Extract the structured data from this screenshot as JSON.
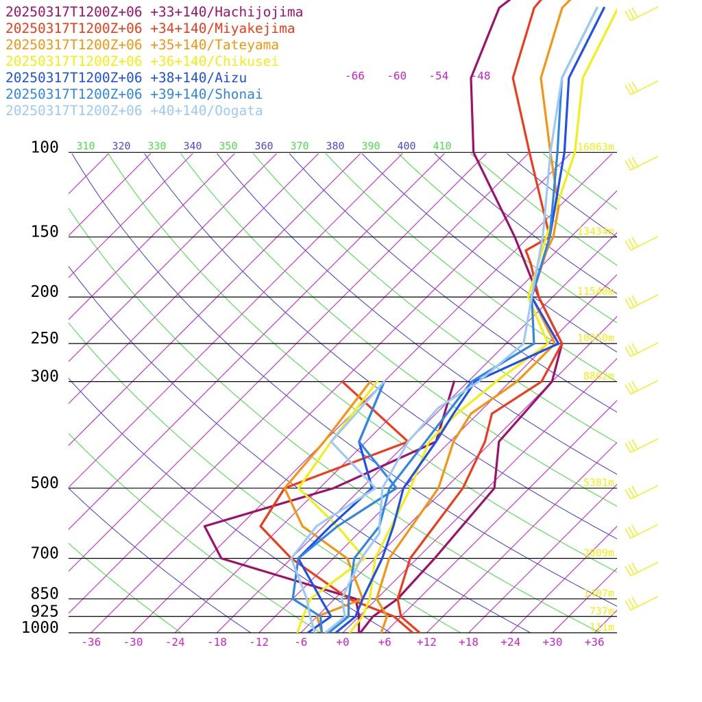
{
  "chart_data": {
    "type": "line",
    "title": "",
    "xlabel": "",
    "ylabel": "",
    "xlim": [
      -40,
      40
    ],
    "x_ticks": [
      -36,
      -30,
      -24,
      -18,
      -12,
      -6,
      0,
      6,
      12,
      18,
      24,
      30,
      36
    ],
    "x_tick_labels": [
      "-36",
      "-30",
      "-24",
      "-18",
      "-12",
      "-6",
      "+0",
      "+6",
      "+12",
      "+18",
      "+24",
      "+30",
      "+36"
    ],
    "top_isotherm_labels": [
      {
        "t": -66,
        "label": "-66"
      },
      {
        "t": -60,
        "label": "-60"
      },
      {
        "t": -54,
        "label": "-54"
      },
      {
        "t": -48,
        "label": "-48"
      }
    ],
    "pressure_levels": [
      {
        "p": 100,
        "label": "100",
        "height": "16063m"
      },
      {
        "p": 150,
        "label": "150",
        "height": "13434m"
      },
      {
        "p": 200,
        "label": "200",
        "height": "11540m"
      },
      {
        "p": 250,
        "label": "250",
        "height": "10050m"
      },
      {
        "p": 300,
        "label": "300",
        "height": "8862m"
      },
      {
        "p": 500,
        "label": "500",
        "height": "5381m"
      },
      {
        "p": 700,
        "label": "700",
        "height": "2809m"
      },
      {
        "p": 850,
        "label": "850",
        "height": "1407m"
      },
      {
        "p": 925,
        "label": "925",
        "height": "737m"
      },
      {
        "p": 1000,
        "label": "1000",
        "height": "111m"
      }
    ],
    "theta_labels": [
      "310",
      "320",
      "330",
      "340",
      "350",
      "360",
      "370",
      "380",
      "390",
      "400",
      "410"
    ],
    "series": [
      {
        "name": "20250317T1200Z+06 +33+140/Hachijojima",
        "color": "#a0106a",
        "temperature": [
          [
            1000,
            2.5
          ],
          [
            925,
            2.0
          ],
          [
            850,
            3.0
          ],
          [
            700,
            2.5
          ],
          [
            500,
            1.0
          ],
          [
            400,
            -5.0
          ],
          [
            300,
            -6.0
          ],
          [
            250,
            -10.0
          ],
          [
            200,
            -20.0
          ],
          [
            150,
            -32.0
          ],
          [
            100,
            -50.0
          ],
          [
            70,
            -61.0
          ],
          [
            50,
            -67.0
          ],
          [
            40,
            -65.0
          ]
        ],
        "dewpoint": [
          [
            1000,
            2.3
          ],
          [
            925,
            0.0
          ],
          [
            850,
            -3.0
          ],
          [
            700,
            -28.0
          ],
          [
            600,
            -35.0
          ],
          [
            500,
            -22.0
          ],
          [
            400,
            -14.0
          ],
          [
            300,
            -20.0
          ]
        ]
      },
      {
        "name": "20250317T1200Z+06 +34+140/Miyakejima",
        "color": "#f03a1a",
        "temperature": [
          [
            1000,
            11.0
          ],
          [
            925,
            6.0
          ],
          [
            850,
            3.0
          ],
          [
            700,
            -1.0
          ],
          [
            500,
            -3.5
          ],
          [
            400,
            -7.0
          ],
          [
            350,
            -10.0
          ],
          [
            300,
            -7.5
          ],
          [
            250,
            -10.0
          ],
          [
            200,
            -20.0
          ],
          [
            170,
            -26.0
          ],
          [
            160,
            -28.5
          ],
          [
            150,
            -27.0
          ],
          [
            100,
            -42.0
          ],
          [
            70,
            -55.0
          ],
          [
            50,
            -62.0
          ],
          [
            40,
            -63.0
          ]
        ],
        "dewpoint": [
          [
            1000,
            10.0
          ],
          [
            925,
            5.0
          ],
          [
            850,
            -4.0
          ],
          [
            700,
            -18.0
          ],
          [
            600,
            -27.0
          ],
          [
            500,
            -29.0
          ],
          [
            400,
            -18.0
          ],
          [
            300,
            -36.0
          ]
        ]
      },
      {
        "name": "20250317T1200Z+06 +35+140/Tateyama",
        "color": "#f7940f",
        "temperature": [
          [
            1000,
            5.5
          ],
          [
            925,
            4.0
          ],
          [
            850,
            0.0
          ],
          [
            700,
            -4.0
          ],
          [
            500,
            -7.0
          ],
          [
            400,
            -11.5
          ],
          [
            350,
            -13.0
          ],
          [
            300,
            -11.0
          ],
          [
            250,
            -11.0
          ],
          [
            200,
            -21.0
          ],
          [
            160,
            -25.5
          ],
          [
            150,
            -26.5
          ],
          [
            130,
            -30.0
          ],
          [
            100,
            -39.0
          ],
          [
            70,
            -51.0
          ],
          [
            50,
            -58.0
          ],
          [
            40,
            -58.0
          ]
        ],
        "dewpoint": [
          [
            1000,
            -3.0
          ],
          [
            925,
            -6.0
          ],
          [
            850,
            -2.0
          ],
          [
            700,
            -10.0
          ],
          [
            600,
            -21.0
          ],
          [
            500,
            -29.0
          ],
          [
            400,
            -30.0
          ],
          [
            300,
            -32.0
          ]
        ]
      },
      {
        "name": "20250317T1200Z+06 +36+140/Chikusei",
        "color": "#f2ef13",
        "temperature": [
          [
            1000,
            1.0
          ],
          [
            925,
            0.5
          ],
          [
            850,
            -1.0
          ],
          [
            700,
            -6.0
          ],
          [
            500,
            -11.0
          ],
          [
            400,
            -15.0
          ],
          [
            350,
            -15.0
          ],
          [
            300,
            -14.0
          ],
          [
            250,
            -12.0
          ],
          [
            200,
            -21.5
          ],
          [
            150,
            -27.5
          ],
          [
            100,
            -35.5
          ],
          [
            70,
            -45.0
          ],
          [
            50,
            -50.0
          ],
          [
            40,
            -50.0
          ]
        ],
        "dewpoint": [
          [
            1000,
            -6.5
          ],
          [
            925,
            -8.0
          ],
          [
            850,
            -9.5
          ],
          [
            700,
            -7.5
          ],
          [
            600,
            -16.0
          ],
          [
            500,
            -27.0
          ],
          [
            400,
            -29.0
          ],
          [
            300,
            -31.0
          ]
        ]
      },
      {
        "name": "20250317T1200Z+06 +38+140/Aizu",
        "color": "#1c4ef0",
        "temperature": [
          [
            1000,
            -1.0
          ],
          [
            925,
            -0.5
          ],
          [
            850,
            -2.0
          ],
          [
            700,
            -5.0
          ],
          [
            600,
            -8.0
          ],
          [
            500,
            -12.0
          ],
          [
            400,
            -14.0
          ],
          [
            350,
            -15.5
          ],
          [
            300,
            -17.0
          ],
          [
            250,
            -10.5
          ],
          [
            200,
            -21.0
          ],
          [
            150,
            -27.0
          ],
          [
            100,
            -37.0
          ],
          [
            70,
            -47.0
          ],
          [
            50,
            -52.0
          ]
        ],
        "dewpoint": [
          [
            1000,
            -5.0
          ],
          [
            925,
            -4.0
          ],
          [
            850,
            -8.0
          ],
          [
            700,
            -17.0
          ],
          [
            600,
            -17.0
          ],
          [
            500,
            -16.5
          ],
          [
            400,
            -25.0
          ],
          [
            300,
            -30.0
          ]
        ]
      },
      {
        "name": "20250317T1200Z+06 +39+140/Shonai",
        "color": "#2f86e6",
        "temperature": [
          [
            1000,
            -2.0
          ],
          [
            925,
            -1.5
          ],
          [
            850,
            -4.0
          ],
          [
            700,
            -9.0
          ],
          [
            600,
            -10.0
          ],
          [
            500,
            -14.0
          ],
          [
            400,
            -15.5
          ],
          [
            300,
            -17.5
          ],
          [
            250,
            -14.0
          ],
          [
            200,
            -21.0
          ],
          [
            150,
            -27.0
          ],
          [
            100,
            -38.0
          ],
          [
            70,
            -48.0
          ],
          [
            50,
            -53.0
          ]
        ],
        "dewpoint": [
          [
            1000,
            -3.0
          ],
          [
            925,
            -5.5
          ],
          [
            850,
            -12.0
          ],
          [
            700,
            -17.0
          ],
          [
            600,
            -16.0
          ],
          [
            500,
            -13.0
          ],
          [
            400,
            -25.0
          ],
          [
            300,
            -30.0
          ]
        ]
      },
      {
        "name": "20250317T1200Z+06 +40+140/Oogata",
        "color": "#9ec9f5",
        "temperature": [
          [
            1000,
            -2.5
          ],
          [
            925,
            -2.0
          ],
          [
            850,
            -5.0
          ],
          [
            700,
            -8.0
          ],
          [
            620,
            -9.0
          ],
          [
            600,
            -10.0
          ],
          [
            500,
            -15.0
          ],
          [
            400,
            -18.0
          ],
          [
            340,
            -18.5
          ],
          [
            300,
            -16.5
          ],
          [
            250,
            -15.5
          ],
          [
            200,
            -21.0
          ],
          [
            150,
            -28.0
          ],
          [
            100,
            -39.0
          ],
          [
            70,
            -48.0
          ],
          [
            50,
            -53.0
          ]
        ],
        "dewpoint": [
          [
            1000,
            -4.0
          ],
          [
            925,
            -7.0
          ],
          [
            850,
            -10.0
          ],
          [
            700,
            -18.0
          ],
          [
            600,
            -19.0
          ],
          [
            500,
            -16.0
          ],
          [
            400,
            -29.0
          ],
          [
            300,
            -30.0
          ]
        ]
      }
    ]
  }
}
